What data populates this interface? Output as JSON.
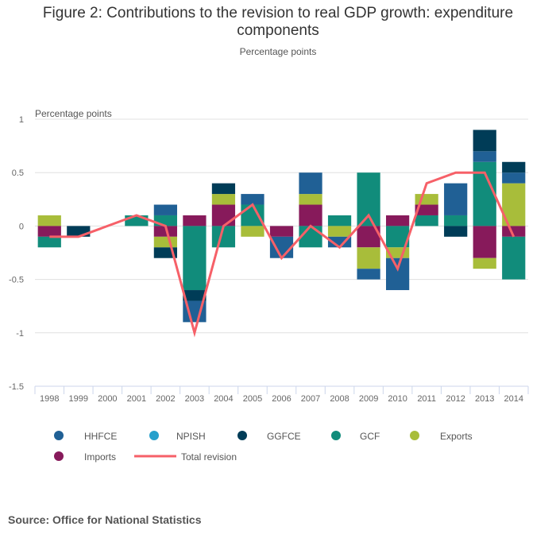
{
  "title": "Figure 2: Contributions to the revision to real GDP growth: expenditure components",
  "title_line1": "Figure 2: Contributions to the revision to real GDP growth: expenditure",
  "title_line2": "components",
  "subtitle": "Percentage points",
  "source": "Source: Office for National Statistics",
  "chart_data": {
    "type": "bar",
    "stacked": true,
    "title": "Figure 2: Contributions to the revision to real GDP growth: expenditure components",
    "subtitle": "Percentage points",
    "ylabel": "Percentage points",
    "xlabel": "",
    "ylim": [
      -1.5,
      1
    ],
    "yticks": [
      1,
      0.5,
      0,
      -0.5,
      -1,
      -1.5
    ],
    "ytick_labels": [
      "1",
      "0.5",
      "0",
      "-0.5",
      "-1",
      "-1.5"
    ],
    "grid": true,
    "legend_position": "bottom",
    "categories": [
      "1998",
      "1999",
      "2000",
      "2001",
      "2002",
      "2003",
      "2004",
      "2005",
      "2006",
      "2007",
      "2008",
      "2009",
      "2010",
      "2011",
      "2012",
      "2013",
      "2014"
    ],
    "series": [
      {
        "name": "HHFCE",
        "kind": "bar",
        "color": "#206095",
        "values": [
          0,
          0,
          0,
          0,
          0.1,
          -0.2,
          0,
          0.1,
          -0.2,
          0.2,
          -0.1,
          -0.1,
          -0.3,
          0,
          0.3,
          0.1,
          0.1
        ]
      },
      {
        "name": "NPISH",
        "kind": "bar",
        "color": "#27A0CC",
        "values": [
          0,
          0,
          0,
          0,
          0,
          0,
          0,
          0,
          0,
          0,
          0,
          0,
          0,
          0,
          0,
          0,
          0
        ]
      },
      {
        "name": "GGFCE",
        "kind": "bar",
        "color": "#003C57",
        "values": [
          0,
          -0.1,
          0,
          0,
          -0.1,
          -0.1,
          0.1,
          0,
          0,
          0,
          0,
          0,
          0,
          0,
          -0.1,
          0.2,
          0.1
        ]
      },
      {
        "name": "GCF",
        "kind": "bar",
        "color": "#118C7B",
        "values": [
          -0.1,
          0,
          0,
          0.1,
          0.1,
          -0.6,
          -0.2,
          0.2,
          0,
          -0.2,
          0.1,
          0.5,
          -0.2,
          0.1,
          0.1,
          0.6,
          -0.4
        ]
      },
      {
        "name": "Exports",
        "kind": "bar",
        "color": "#A8BD3A",
        "values": [
          0.1,
          0,
          0,
          0,
          -0.1,
          0,
          0.1,
          -0.1,
          0,
          0.1,
          -0.1,
          -0.2,
          -0.1,
          0.1,
          0,
          -0.1,
          0.4
        ]
      },
      {
        "name": "Imports",
        "kind": "bar",
        "color": "#871A5B",
        "values": [
          -0.1,
          0,
          0,
          0,
          -0.1,
          0.1,
          0.2,
          0,
          -0.1,
          0.2,
          0,
          -0.2,
          0.1,
          0.1,
          0,
          -0.3,
          -0.1
        ]
      },
      {
        "name": "Total revision",
        "kind": "line",
        "color": "#F66068",
        "values": [
          -0.1,
          -0.1,
          0,
          0.1,
          0,
          -1.0,
          0,
          0.2,
          -0.3,
          0,
          -0.2,
          0.1,
          -0.4,
          0.4,
          0.5,
          0.5,
          -0.1
        ]
      }
    ],
    "stack_order_positive": [
      "GCF",
      "Imports",
      "Exports",
      "HHFCE",
      "GGFCE",
      "NPISH"
    ],
    "stack_order_negative": [
      "Imports",
      "GCF",
      "Exports",
      "GGFCE",
      "HHFCE",
      "NPISH"
    ]
  }
}
